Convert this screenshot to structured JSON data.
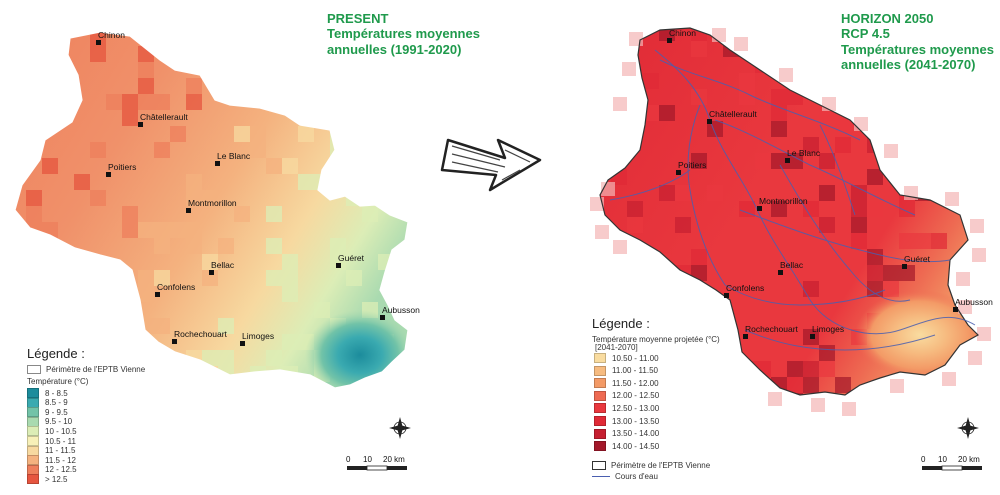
{
  "left_panel": {
    "title_lines": [
      "PRESENT",
      "Températures moyennes",
      "annuelles (1991-2020)"
    ],
    "legend": {
      "heading": "Légende :",
      "boundary_label": "Périmètre de l'EPTB Vienne",
      "subtitle": "Température (°C)",
      "classes": [
        {
          "label": "8 - 8.5",
          "color": "#1c8c9c"
        },
        {
          "label": "8.5 - 9",
          "color": "#3aaab0"
        },
        {
          "label": "9 - 9.5",
          "color": "#72c3a8"
        },
        {
          "label": "9.5 - 10",
          "color": "#a9dab0"
        },
        {
          "label": "10 - 10.5",
          "color": "#dcedb6"
        },
        {
          "label": "10.5 - 11",
          "color": "#f7f0b8"
        },
        {
          "label": "11 - 11.5",
          "color": "#f7d9a0"
        },
        {
          "label": "11.5 - 12",
          "color": "#f4b27f"
        },
        {
          "label": "12 - 12.5",
          "color": "#ee7f5c"
        },
        {
          "label": "> 12.5",
          "color": "#e6553f"
        }
      ]
    },
    "cities": [
      {
        "name": "Chinon"
      },
      {
        "name": "Châtellerault"
      },
      {
        "name": "Poitiers"
      },
      {
        "name": "Le Blanc"
      },
      {
        "name": "Montmorillon"
      },
      {
        "name": "Guéret"
      },
      {
        "name": "Bellac"
      },
      {
        "name": "Confolens"
      },
      {
        "name": "Aubusson"
      },
      {
        "name": "Rochechouart"
      },
      {
        "name": "Limoges"
      }
    ],
    "scale": {
      "ticks": [
        "0",
        "10",
        "20 km"
      ]
    }
  },
  "right_panel": {
    "title_lines": [
      "HORIZON 2050",
      "RCP 4.5",
      "Températures moyennes",
      "annuelles (2041-2070)"
    ],
    "legend": {
      "heading": "Légende :",
      "subtitle_lines": [
        "Température moyenne projetée (°C)",
        "[2041-2070]"
      ],
      "classes": [
        {
          "label": "10.50 - 11.00",
          "color": "#f9dca0"
        },
        {
          "label": "11.00 - 11.50",
          "color": "#f6bb80"
        },
        {
          "label": "11.50 - 12.00",
          "color": "#f39a66"
        },
        {
          "label": "12.00 - 12.50",
          "color": "#ee6a52"
        },
        {
          "label": "12.50 - 13.00",
          "color": "#e9383e"
        },
        {
          "label": "13.00 - 13.50",
          "color": "#e02a36"
        },
        {
          "label": "13.50 - 14.00",
          "color": "#c61f30"
        },
        {
          "label": "14.00 - 14.50",
          "color": "#a3182a"
        }
      ],
      "boundary_label": "Périmètre de l'EPTB Vienne",
      "river_label": "Cours d'eau"
    },
    "cities": [
      {
        "name": "Chinon"
      },
      {
        "name": "Châtellerault"
      },
      {
        "name": "Poitiers"
      },
      {
        "name": "Le Blanc"
      },
      {
        "name": "Montmorillon"
      },
      {
        "name": "Guéret"
      },
      {
        "name": "Bellac"
      },
      {
        "name": "Confolens"
      },
      {
        "name": "Aubusson"
      },
      {
        "name": "Rochechouart"
      },
      {
        "name": "Limoges"
      }
    ],
    "scale": {
      "ticks": [
        "0",
        "10",
        "20 km"
      ]
    }
  },
  "colors": {
    "title_green": "#1f9a4c",
    "river_blue": "#4a5fb0"
  }
}
